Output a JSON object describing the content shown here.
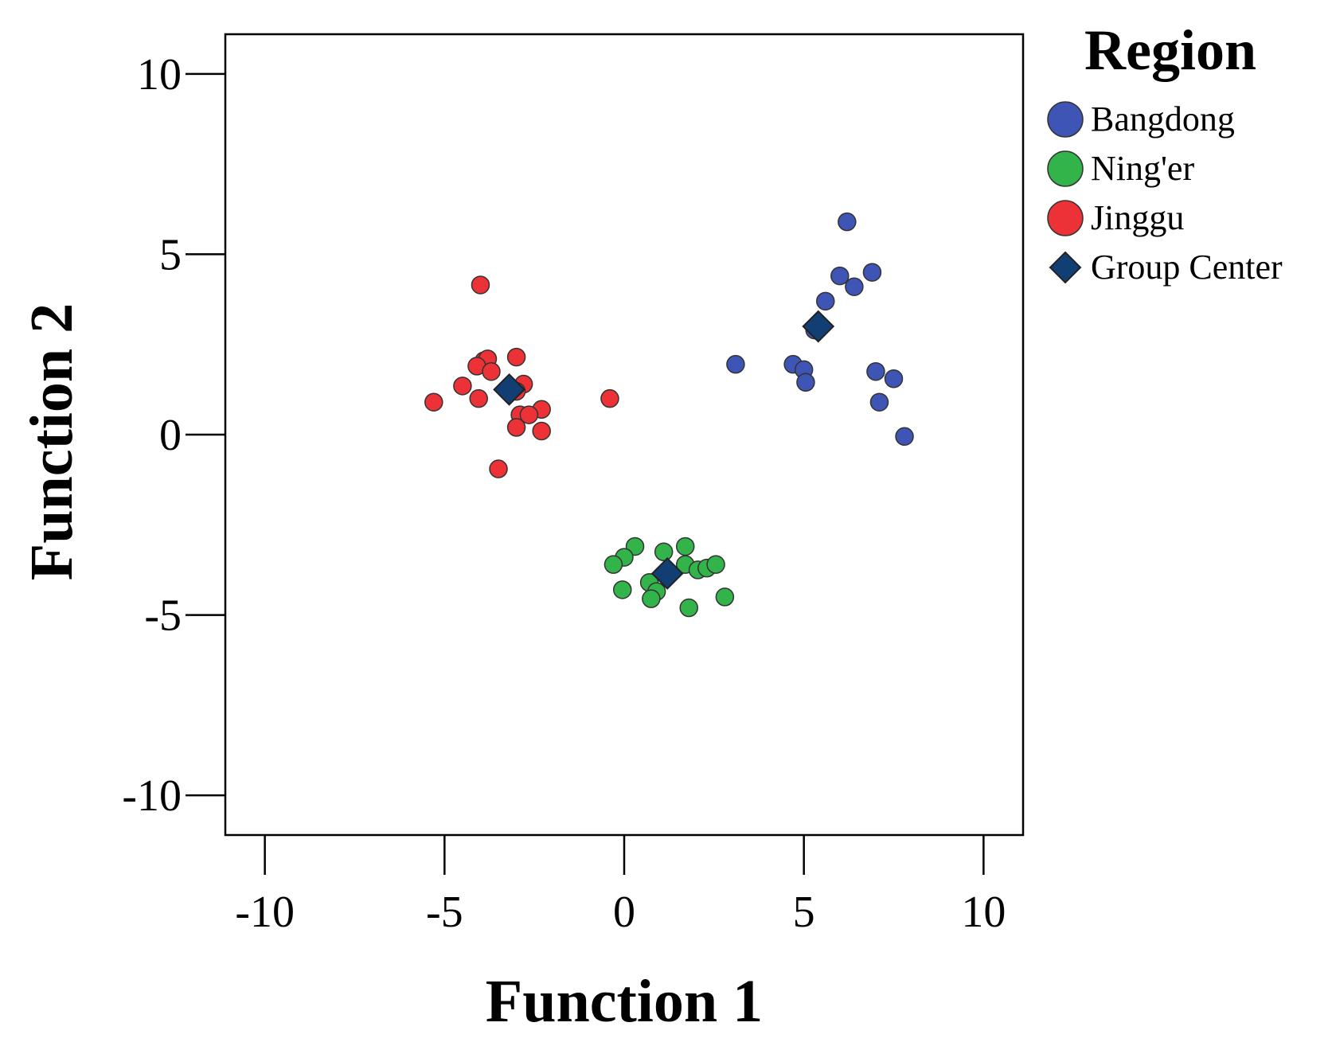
{
  "chart_data": {
    "type": "scatter",
    "xlabel": "Function 1",
    "ylabel": "Function 2",
    "xlim": [
      -11.1,
      11.1
    ],
    "ylim": [
      -11.1,
      11.1
    ],
    "xticks": [
      -10,
      -5,
      0,
      5,
      10
    ],
    "yticks": [
      10,
      5,
      0,
      -5,
      -10
    ],
    "xtick_labels": [
      "-10",
      "-5",
      "0",
      "5",
      "10"
    ],
    "ytick_labels": [
      "10",
      "5",
      "0",
      "-5",
      "-10"
    ],
    "grid": false,
    "legend": {
      "title": "Region",
      "placement": "top-right outside plot",
      "entries": [
        {
          "label": "Bangdong",
          "marker": "circle",
          "color": "#3F55B5"
        },
        {
          "label": "Ning'er",
          "marker": "circle",
          "color": "#33B44A"
        },
        {
          "label": "Jinggu",
          "marker": "circle",
          "color": "#EC3237"
        },
        {
          "label": "Group Center",
          "marker": "diamond",
          "color": "#123F73"
        }
      ]
    },
    "series": [
      {
        "name": "Bangdong",
        "color": "#3F55B5",
        "marker": "circle",
        "points": [
          [
            6.2,
            5.9
          ],
          [
            6.0,
            4.4
          ],
          [
            6.4,
            4.1
          ],
          [
            6.9,
            4.5
          ],
          [
            5.6,
            3.7
          ],
          [
            5.3,
            2.9
          ],
          [
            3.1,
            1.95
          ],
          [
            4.7,
            1.95
          ],
          [
            5.0,
            1.8
          ],
          [
            5.05,
            1.45
          ],
          [
            7.0,
            1.75
          ],
          [
            7.5,
            1.55
          ],
          [
            7.1,
            0.9
          ],
          [
            7.8,
            -0.05
          ]
        ]
      },
      {
        "name": "Ning'er",
        "color": "#33B44A",
        "marker": "circle",
        "points": [
          [
            0.3,
            -3.1
          ],
          [
            0.0,
            -3.4
          ],
          [
            -0.3,
            -3.6
          ],
          [
            1.1,
            -3.25
          ],
          [
            1.7,
            -3.1
          ],
          [
            1.7,
            -3.6
          ],
          [
            2.05,
            -3.75
          ],
          [
            2.3,
            -3.7
          ],
          [
            2.55,
            -3.6
          ],
          [
            0.7,
            -4.1
          ],
          [
            0.9,
            -4.35
          ],
          [
            0.75,
            -4.55
          ],
          [
            -0.05,
            -4.3
          ],
          [
            1.8,
            -4.8
          ],
          [
            2.8,
            -4.5
          ]
        ]
      },
      {
        "name": "Jinggu",
        "color": "#EC3237",
        "marker": "circle",
        "points": [
          [
            -4.0,
            4.15
          ],
          [
            -3.9,
            2.05
          ],
          [
            -3.8,
            2.1
          ],
          [
            -4.1,
            1.9
          ],
          [
            -3.7,
            1.75
          ],
          [
            -3.0,
            2.15
          ],
          [
            -2.8,
            1.4
          ],
          [
            -3.0,
            1.2
          ],
          [
            -4.5,
            1.35
          ],
          [
            -4.05,
            1.0
          ],
          [
            -5.3,
            0.9
          ],
          [
            -2.3,
            0.7
          ],
          [
            -2.9,
            0.55
          ],
          [
            -2.65,
            0.55
          ],
          [
            -3.0,
            0.2
          ],
          [
            -2.3,
            0.1
          ],
          [
            -0.4,
            1.0
          ],
          [
            -3.5,
            -0.95
          ]
        ]
      },
      {
        "name": "Group Center",
        "color": "#123F73",
        "marker": "diamond",
        "points": [
          [
            5.4,
            3.0
          ],
          [
            1.2,
            -3.85
          ],
          [
            -3.2,
            1.25
          ]
        ]
      }
    ]
  }
}
